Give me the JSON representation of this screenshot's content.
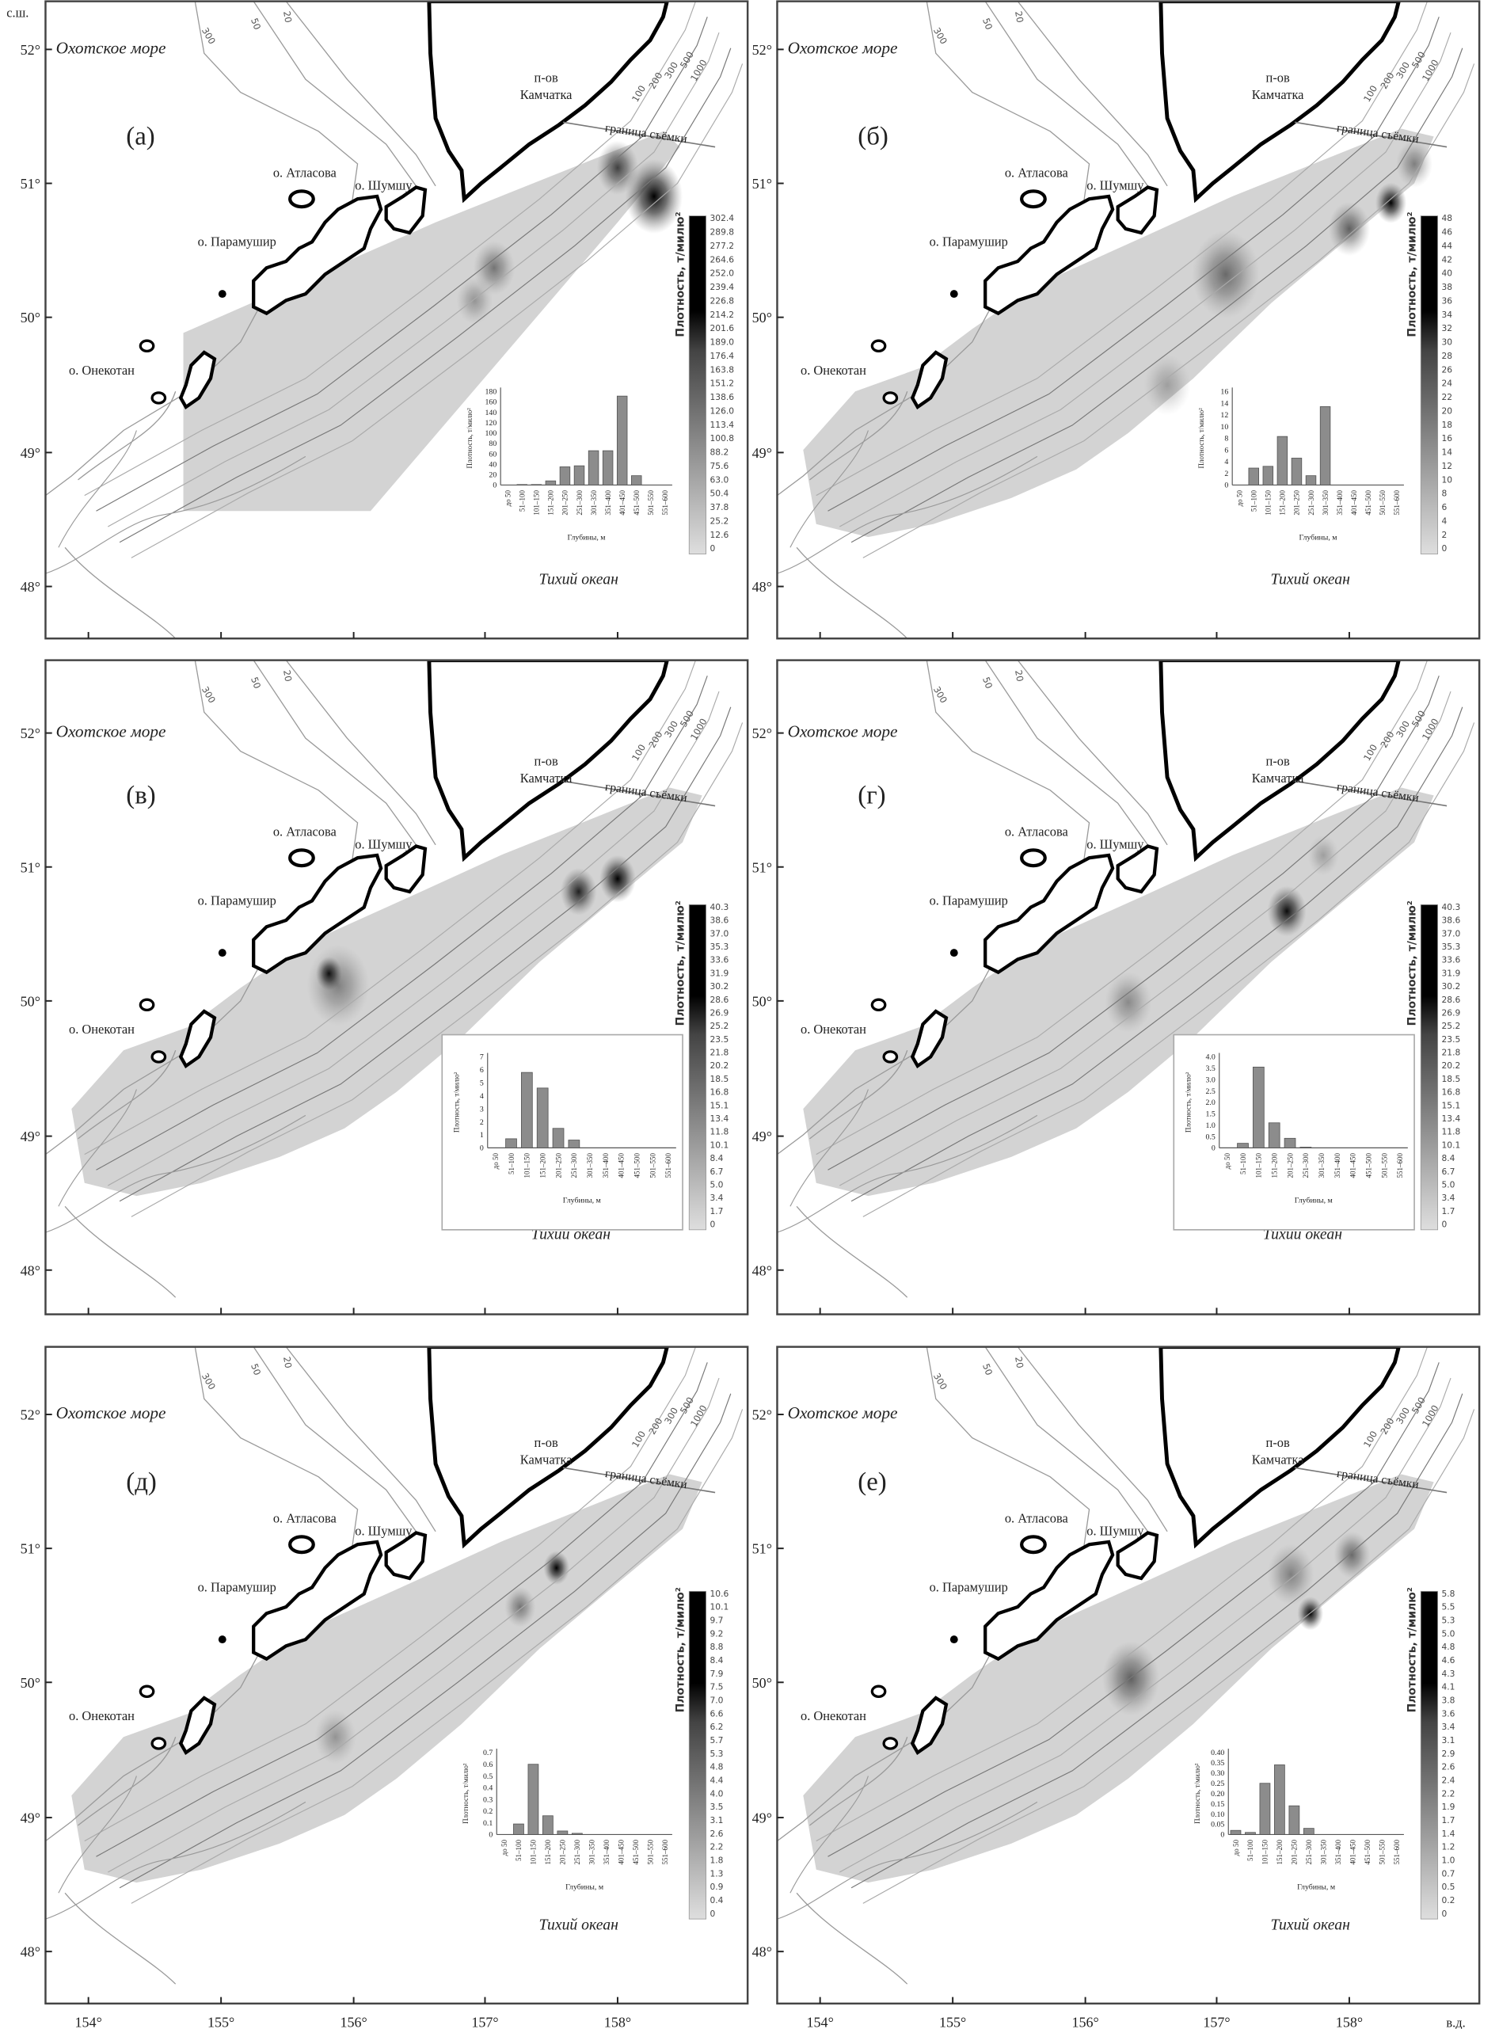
{
  "figure": {
    "lat_unit": "с.ш.",
    "lon_unit": "в.д.",
    "lat_ticks": [
      "52°",
      "51°",
      "50°",
      "49°",
      "48°"
    ],
    "lon_ticks": [
      "154°",
      "155°",
      "156°",
      "157°",
      "158°"
    ]
  },
  "map_labels": {
    "sea": "Охотское море",
    "ocean": "Тихий океан",
    "peninsula_1": "п-ов",
    "peninsula_2": "Камчатка",
    "atlasova": "о. Атласова",
    "shumshu": "о. Шумшу",
    "paramushir": "о. Парамушир",
    "onekotan": "о. Онекотан",
    "survey_boundary": "граница съёмки",
    "isobaths": [
      "300",
      "50",
      "20",
      "100",
      "200",
      "300",
      "500",
      "1000"
    ]
  },
  "colorbar_title": "Плотность, т/милю²",
  "colors": {
    "land_outline": "#000000",
    "isobath": "#9a9a9a",
    "survey_fill": "#d3d3d3",
    "bar": "#8c8c8c"
  },
  "chart_data": [
    {
      "type": "bar",
      "panel": "(а)",
      "categories": [
        "до 50",
        "51–100",
        "101–150",
        "151–200",
        "201–250",
        "251–300",
        "301–350",
        "351–400",
        "401–450",
        "451–500",
        "501–550",
        "551–600"
      ],
      "values": [
        0,
        1,
        1,
        8,
        35,
        37,
        66,
        66,
        171,
        18,
        0,
        0
      ],
      "ylim": [
        0,
        180
      ],
      "yticks": [
        "0",
        "20",
        "40",
        "60",
        "80",
        "100",
        "120",
        "140",
        "160",
        "180"
      ],
      "xlabel": "Глубины, м",
      "ylabel": "Плотность, т/милю²",
      "colorbar_ticks": [
        "302.4",
        "289.8",
        "277.2",
        "264.6",
        "252.0",
        "239.4",
        "226.8",
        "214.2",
        "201.6",
        "189.0",
        "176.4",
        "163.8",
        "151.2",
        "138.6",
        "126.0",
        "113.4",
        "100.8",
        "88.2",
        "75.6",
        "63.0",
        "50.4",
        "37.8",
        "25.2",
        "12.6",
        "0"
      ]
    },
    {
      "type": "bar",
      "panel": "(б)",
      "categories": [
        "до 50",
        "51–100",
        "101–150",
        "151–200",
        "201–250",
        "251–300",
        "301–350",
        "351–400",
        "401–450",
        "451–500",
        "501–550",
        "551–600"
      ],
      "values": [
        0,
        2.9,
        3.2,
        8.3,
        4.6,
        1.6,
        13.4,
        0,
        0,
        0,
        0,
        0
      ],
      "ylim": [
        0,
        16
      ],
      "yticks": [
        "0",
        "2",
        "4",
        "6",
        "8",
        "10",
        "12",
        "14",
        "16"
      ],
      "xlabel": "Глубины, м",
      "ylabel": "Плотность, т/милю²",
      "colorbar_ticks": [
        "48",
        "46",
        "44",
        "42",
        "40",
        "38",
        "36",
        "34",
        "32",
        "30",
        "28",
        "26",
        "24",
        "22",
        "20",
        "18",
        "16",
        "14",
        "12",
        "10",
        "8",
        "6",
        "4",
        "2",
        "0"
      ]
    },
    {
      "type": "bar",
      "panel": "(в)",
      "categories": [
        "до 50",
        "51–100",
        "101–150",
        "151–200",
        "201–250",
        "251–300",
        "301–350",
        "351–400",
        "401–450",
        "451–500",
        "501–550",
        "551–600"
      ],
      "values": [
        0,
        0.7,
        5.8,
        4.6,
        1.5,
        0.6,
        0,
        0,
        0,
        0,
        0,
        0
      ],
      "ylim": [
        0,
        7
      ],
      "yticks": [
        "0",
        "1",
        "2",
        "3",
        "4",
        "5",
        "6",
        "7"
      ],
      "xlabel": "Глубины, м",
      "ylabel": "Плотность, т/милю²",
      "colorbar_ticks": [
        "40.3",
        "38.6",
        "37.0",
        "35.3",
        "33.6",
        "31.9",
        "30.2",
        "28.6",
        "26.9",
        "25.2",
        "23.5",
        "21.8",
        "20.2",
        "18.5",
        "16.8",
        "15.1",
        "13.4",
        "11.8",
        "10.1",
        "8.4",
        "6.7",
        "5.0",
        "3.4",
        "1.7",
        "0"
      ]
    },
    {
      "type": "bar",
      "panel": "(г)",
      "categories": [
        "до 50",
        "51–100",
        "101–150",
        "151–200",
        "201–250",
        "251–300",
        "301–350",
        "351–400",
        "401–450",
        "451–500",
        "501–550",
        "551–600"
      ],
      "values": [
        0,
        0.2,
        3.55,
        1.1,
        0.42,
        0.03,
        0,
        0,
        0,
        0,
        0,
        0
      ],
      "ylim": [
        0,
        4.0
      ],
      "yticks": [
        "0",
        "0.5",
        "1.0",
        "1.5",
        "2.0",
        "2.5",
        "3.0",
        "3.5",
        "4.0"
      ],
      "xlabel": "Глубины, м",
      "ylabel": "Плотность, т/милю²",
      "colorbar_ticks": [
        "40.3",
        "38.6",
        "37.0",
        "35.3",
        "33.6",
        "31.9",
        "30.2",
        "28.6",
        "26.9",
        "25.2",
        "23.5",
        "21.8",
        "20.2",
        "18.5",
        "16.8",
        "15.1",
        "13.4",
        "11.8",
        "10.1",
        "8.4",
        "6.7",
        "5.0",
        "3.4",
        "1.7",
        "0"
      ]
    },
    {
      "type": "bar",
      "panel": "(д)",
      "categories": [
        "до 50",
        "51–100",
        "101–150",
        "151–200",
        "201–250",
        "251–300",
        "301–350",
        "351–400",
        "401–450",
        "451–500",
        "501–550",
        "551–600"
      ],
      "values": [
        0,
        0.09,
        0.6,
        0.16,
        0.03,
        0.01,
        0,
        0,
        0,
        0,
        0,
        0
      ],
      "ylim": [
        0,
        0.7
      ],
      "yticks": [
        "0",
        "0.1",
        "0.2",
        "0.3",
        "0.4",
        "0.5",
        "0.6",
        "0.7"
      ],
      "xlabel": "Глубины, м",
      "ylabel": "Плотность, т/милю²",
      "colorbar_ticks": [
        "10.6",
        "10.1",
        "9.7",
        "9.2",
        "8.8",
        "8.4",
        "7.9",
        "7.5",
        "7.0",
        "6.6",
        "6.2",
        "5.7",
        "5.3",
        "4.8",
        "4.4",
        "4.0",
        "3.5",
        "3.1",
        "2.6",
        "2.2",
        "1.8",
        "1.3",
        "0.9",
        "0.4",
        "0"
      ]
    },
    {
      "type": "bar",
      "panel": "(е)",
      "categories": [
        "до 50",
        "51–100",
        "101–150",
        "151–200",
        "201–250",
        "251–300",
        "301–350",
        "351–400",
        "401–450",
        "451–500",
        "501–550",
        "551–600"
      ],
      "values": [
        0.02,
        0.01,
        0.25,
        0.34,
        0.14,
        0.03,
        0,
        0,
        0,
        0,
        0,
        0
      ],
      "ylim": [
        0,
        0.4
      ],
      "yticks": [
        "0",
        "0.05",
        "0.10",
        "0.15",
        "0.20",
        "0.25",
        "0.30",
        "0.35",
        "0.40"
      ],
      "xlabel": "Глубины, м",
      "ylabel": "Плотность, т/милю²",
      "colorbar_ticks": [
        "5.8",
        "5.5",
        "5.3",
        "5.0",
        "4.8",
        "4.6",
        "4.3",
        "4.1",
        "3.8",
        "3.6",
        "3.4",
        "3.1",
        "2.9",
        "2.6",
        "2.4",
        "2.2",
        "1.9",
        "1.7",
        "1.4",
        "1.2",
        "1.0",
        "0.7",
        "0.5",
        "0.2",
        "0"
      ]
    }
  ]
}
